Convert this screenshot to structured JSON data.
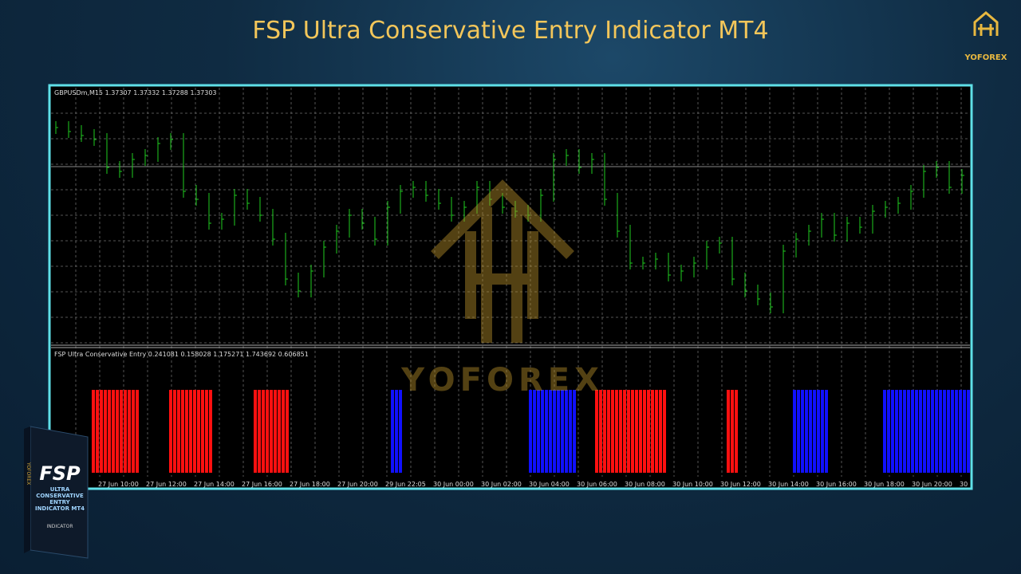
{
  "header": {
    "title": "FSP Ultra Conservative Entry Indicator MT4",
    "brand": "YOFOREX"
  },
  "price_pane": {
    "label": "GBPUSDm,M15  1.37307 1.37332 1.37288 1.37303",
    "closes": [
      1.3745,
      1.37435,
      1.3742,
      1.37405,
      1.373,
      1.37285,
      1.3733,
      1.37345,
      1.3739,
      1.37405,
      1.3721,
      1.3718,
      1.3709,
      1.37105,
      1.37195,
      1.37165,
      1.3712,
      1.3703,
      1.3688,
      1.36835,
      1.3691,
      1.37,
      1.3706,
      1.3712,
      1.3709,
      1.3703,
      1.3715,
      1.3721,
      1.37225,
      1.37195,
      1.37165,
      1.3712,
      1.3715,
      1.37225,
      1.3718,
      1.3715,
      1.37135,
      1.3712,
      1.37195,
      1.3733,
      1.37345,
      1.373,
      1.3733,
      1.3718,
      1.3706,
      1.3694,
      1.3694,
      1.36955,
      1.36895,
      1.3691,
      1.3694,
      1.37,
      1.37015,
      1.3688,
      1.36835,
      1.36805,
      1.36775,
      1.36985,
      1.3703,
      1.3706,
      1.37105,
      1.37045,
      1.3709,
      1.37075,
      1.37135,
      1.3715,
      1.37165,
      1.3721,
      1.37285,
      1.373,
      1.37225,
      1.3727
    ],
    "range": [
      1.36634,
      1.376
    ],
    "color": "#1fcc1f"
  },
  "indicator_pane": {
    "label": "FSP Ultra Conservative Entry 0.241081 0.158028 1.175271 1.743692 0.606851"
  },
  "time_labels": [
    "27 Jun 10:00",
    "27 Jun 12:00",
    "27 Jun 14:00",
    "27 Jun 16:00",
    "27 Jun 18:00",
    "27 Jun 20:00",
    "29 Jun 22:05",
    "30 Jun 00:00",
    "30 Jun 02:00",
    "30 Jun 04:00",
    "30 Jun 06:00",
    "30 Jun 08:00",
    "30 Jun 10:00",
    "30 Jun 12:00",
    "30 Jun 14:00",
    "30 Jun 16:00",
    "30 Jun 18:00",
    "30 Jun 20:00",
    "30"
  ],
  "watermark": "YOFOREX",
  "product_box": {
    "name": "FSP",
    "subtitle": "ULTRA CONSERVATIVE ENTRY INDICATOR MT4",
    "spine": "YOFOREX",
    "kind": "INDICATOR"
  }
}
